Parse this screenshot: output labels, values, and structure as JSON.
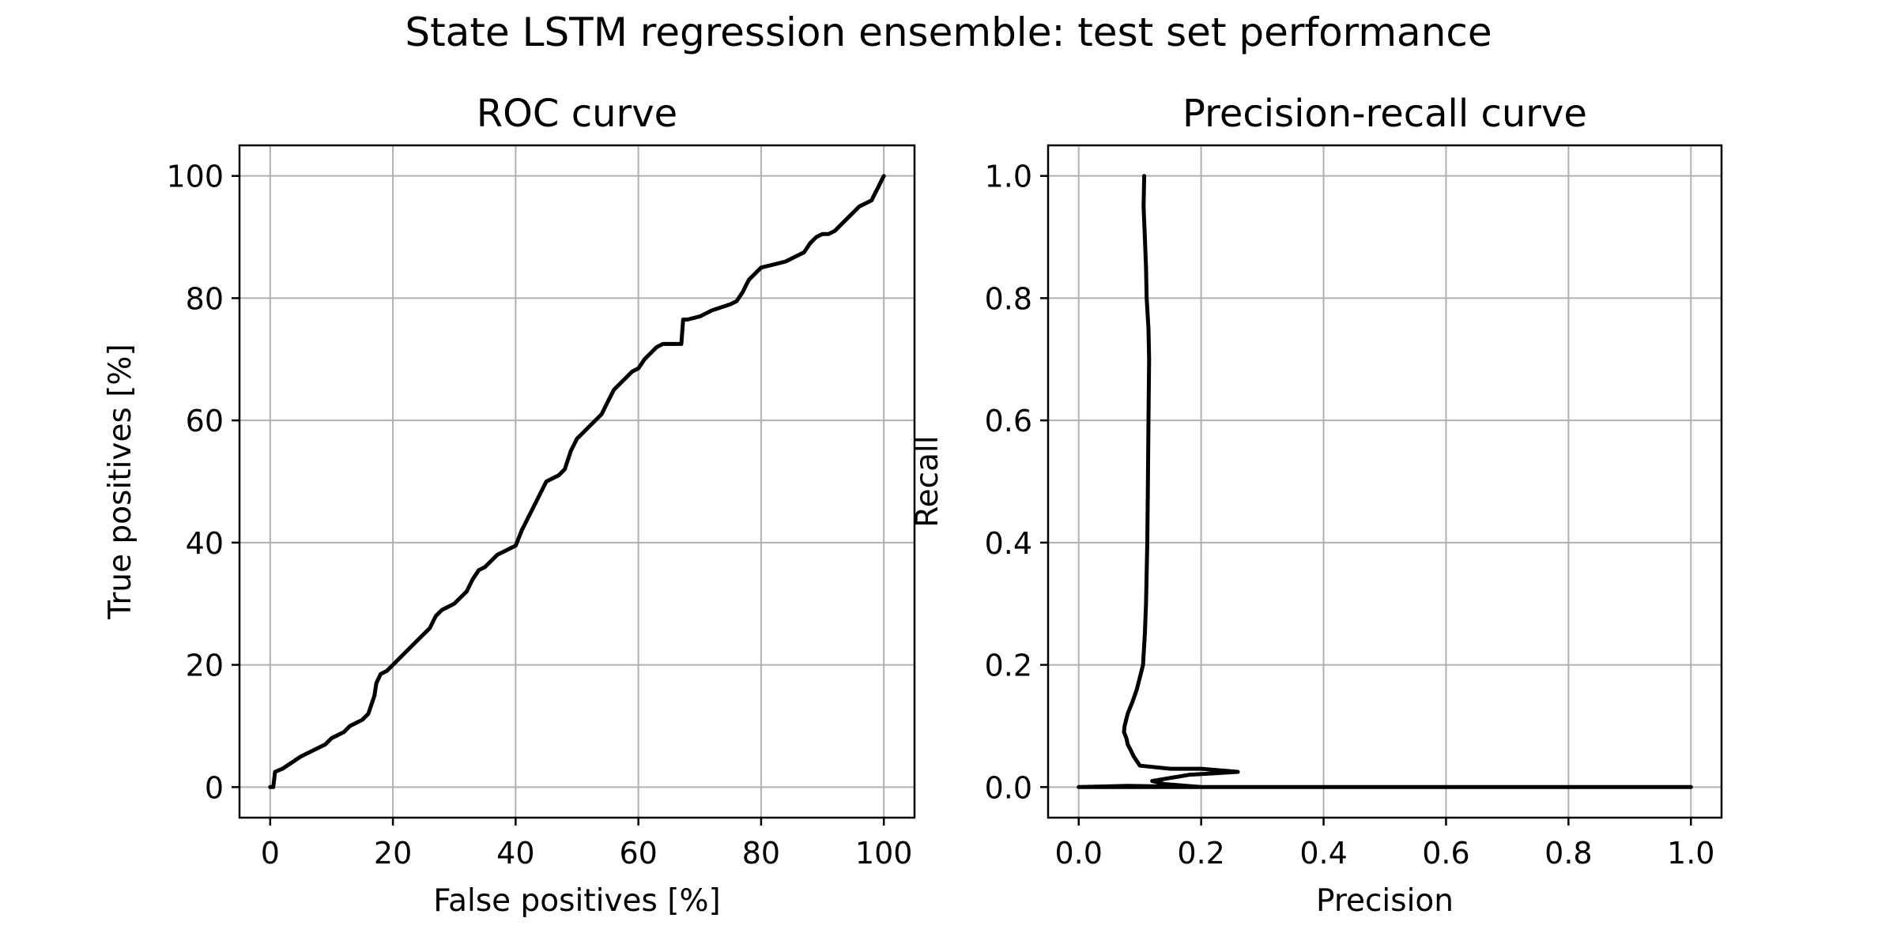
{
  "figure": {
    "suptitle": "State LSTM regression ensemble: test set performance"
  },
  "chart_data": [
    {
      "type": "line",
      "title": "ROC curve",
      "xlabel": "False positives [%]",
      "ylabel": "True positives [%]",
      "xlim": [
        -5,
        105
      ],
      "ylim": [
        -5,
        105
      ],
      "xticks": [
        0,
        20,
        40,
        60,
        80,
        100
      ],
      "yticks": [
        0,
        20,
        40,
        60,
        80,
        100
      ],
      "xtick_labels": [
        "0",
        "20",
        "40",
        "60",
        "80",
        "100"
      ],
      "ytick_labels": [
        "0",
        "20",
        "40",
        "60",
        "80",
        "100"
      ],
      "grid": true,
      "legend": "none",
      "line_color": "#000000",
      "grid_color": "#b0b0b0",
      "series": [
        {
          "x": [
            0,
            0.5,
            0.8,
            2,
            3.5,
            5,
            7,
            9,
            10,
            12,
            13,
            14,
            15,
            16,
            17,
            17.3,
            18,
            19,
            20,
            22,
            24,
            25,
            26,
            27,
            28,
            29,
            30,
            31,
            32,
            33,
            34,
            35,
            36,
            37,
            38,
            39,
            40,
            41,
            42,
            43,
            44,
            45,
            46,
            47,
            48,
            49,
            50,
            51,
            52,
            53,
            54,
            55,
            56,
            57,
            58,
            59,
            60,
            61,
            62,
            63,
            64,
            65,
            66,
            67,
            67.3,
            68,
            70,
            72,
            75,
            76,
            77,
            77.5,
            78,
            79,
            80,
            82,
            84,
            85,
            86,
            87,
            88,
            89,
            90,
            91,
            92,
            93,
            94,
            95,
            96,
            97,
            98,
            98.5,
            99,
            99.5,
            100
          ],
          "y": [
            0,
            0,
            2.5,
            3,
            4,
            5,
            6,
            7,
            8,
            9,
            10,
            10.5,
            11,
            12,
            15,
            17,
            18.5,
            19,
            20,
            22,
            24,
            25,
            26,
            28,
            29,
            29.5,
            30,
            31,
            32,
            34,
            35.5,
            36,
            37,
            38,
            38.5,
            39,
            39.5,
            42,
            44,
            46,
            48,
            50,
            50.5,
            51,
            52,
            55,
            57,
            58,
            59,
            60,
            61,
            63,
            65,
            66,
            67,
            68,
            68.5,
            70,
            71,
            72,
            72.5,
            72.5,
            72.5,
            72.5,
            76.5,
            76.5,
            77,
            78,
            79,
            79.5,
            81,
            82,
            83,
            84,
            85,
            85.5,
            86,
            86.5,
            87,
            87.5,
            89,
            90,
            90.5,
            90.5,
            91,
            92,
            93,
            94,
            95,
            95.5,
            96,
            97,
            98,
            99,
            100
          ]
        }
      ]
    },
    {
      "type": "line",
      "title": "Precision-recall curve",
      "xlabel": "Precision",
      "ylabel": "Recall",
      "xlim": [
        -0.05,
        1.05
      ],
      "ylim": [
        -0.05,
        1.05
      ],
      "xticks": [
        0,
        0.2,
        0.4,
        0.6,
        0.8,
        1
      ],
      "yticks": [
        0,
        0.2,
        0.4,
        0.6,
        0.8,
        1
      ],
      "xtick_labels": [
        "0.0",
        "0.2",
        "0.4",
        "0.6",
        "0.8",
        "1.0"
      ],
      "ytick_labels": [
        "0.0",
        "0.2",
        "0.4",
        "0.6",
        "0.8",
        "1.0"
      ],
      "grid": true,
      "legend": "none",
      "line_color": "#000000",
      "grid_color": "#b0b0b0",
      "series": [
        {
          "x": [
            0.107,
            0.106,
            0.108,
            0.11,
            0.111,
            0.114,
            0.115,
            0.114,
            0.113,
            0.112,
            0.111,
            0.11,
            0.108,
            0.105,
            0.1,
            0.095,
            0.088,
            0.08,
            0.075,
            0.074,
            0.078,
            0.08,
            0.085,
            0.09,
            0.1,
            0.15,
            0.2,
            0.26,
            0.18,
            0.12,
            0.14,
            0.2,
            0.08,
            0,
            1
          ],
          "y": [
            1,
            0.95,
            0.9,
            0.85,
            0.8,
            0.75,
            0.7,
            0.6,
            0.5,
            0.4,
            0.35,
            0.3,
            0.25,
            0.2,
            0.18,
            0.16,
            0.14,
            0.12,
            0.1,
            0.09,
            0.08,
            0.07,
            0.06,
            0.05,
            0.035,
            0.03,
            0.03,
            0.025,
            0.02,
            0.01,
            0.005,
            0,
            0.002,
            0,
            0
          ]
        }
      ]
    }
  ]
}
